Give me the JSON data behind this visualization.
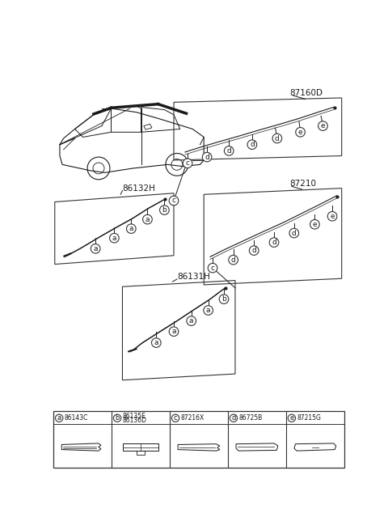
{
  "bg_color": "#ffffff",
  "line_color": "#1a1a1a",
  "circle_edge": "#333333",
  "box_edge": "#333333",
  "fig_width": 4.8,
  "fig_height": 6.55,
  "legend": [
    {
      "letter": "a",
      "code1": "86143C",
      "code2": ""
    },
    {
      "letter": "b",
      "code1": "86135E",
      "code2": "86136D"
    },
    {
      "letter": "c",
      "code1": "87216X",
      "code2": ""
    },
    {
      "letter": "d",
      "code1": "86725B",
      "code2": ""
    },
    {
      "letter": "e",
      "code1": "87215G",
      "code2": ""
    }
  ]
}
